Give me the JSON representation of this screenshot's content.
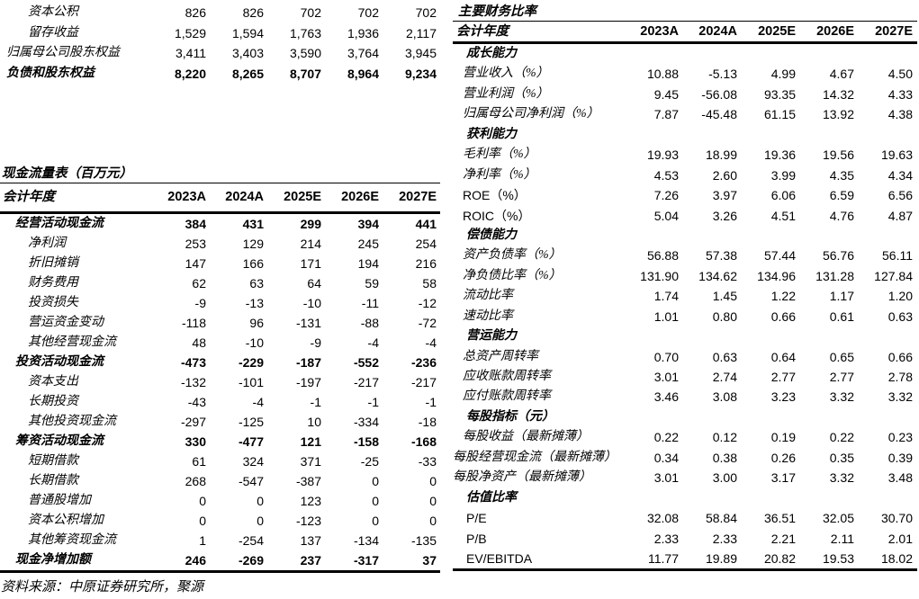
{
  "source_note": "资料来源：中原证券研究所，聚源",
  "balance_sheet_fragment": {
    "rows": [
      {
        "label": "资本公积",
        "indent": 2,
        "bold": false,
        "values": [
          "826",
          "826",
          "702",
          "702",
          "702"
        ]
      },
      {
        "label": "留存收益",
        "indent": 2,
        "bold": false,
        "values": [
          "1,529",
          "1,594",
          "1,763",
          "1,936",
          "2,117"
        ]
      },
      {
        "label": "归属母公司股东权益",
        "indent": 0,
        "bold": false,
        "values": [
          "3,411",
          "3,403",
          "3,590",
          "3,764",
          "3,945"
        ]
      },
      {
        "label": "负债和股东权益",
        "indent": 0,
        "bold": true,
        "values": [
          "8,220",
          "8,265",
          "8,707",
          "8,964",
          "9,234"
        ]
      }
    ]
  },
  "cash_flow_table": {
    "title": "现金流量表（百万元）",
    "header": {
      "label": "会计年度",
      "years": [
        "2023A",
        "2024A",
        "2025E",
        "2026E",
        "2027E"
      ]
    },
    "rows": [
      {
        "label": "经营活动现金流",
        "indent": 1,
        "bold": true,
        "values": [
          "384",
          "431",
          "299",
          "394",
          "441"
        ]
      },
      {
        "label": "净利润",
        "indent": 2,
        "bold": false,
        "values": [
          "253",
          "129",
          "214",
          "245",
          "254"
        ]
      },
      {
        "label": "折旧摊销",
        "indent": 2,
        "bold": false,
        "values": [
          "147",
          "166",
          "171",
          "194",
          "216"
        ]
      },
      {
        "label": "财务费用",
        "indent": 2,
        "bold": false,
        "values": [
          "62",
          "63",
          "64",
          "59",
          "58"
        ]
      },
      {
        "label": "投资损失",
        "indent": 2,
        "bold": false,
        "values": [
          "-9",
          "-13",
          "-10",
          "-11",
          "-12"
        ]
      },
      {
        "label": "营运资金变动",
        "indent": 2,
        "bold": false,
        "values": [
          "-118",
          "96",
          "-131",
          "-88",
          "-72"
        ]
      },
      {
        "label": "其他经营现金流",
        "indent": 2,
        "bold": false,
        "values": [
          "48",
          "-10",
          "-9",
          "-4",
          "-4"
        ]
      },
      {
        "label": "投资活动现金流",
        "indent": 1,
        "bold": true,
        "values": [
          "-473",
          "-229",
          "-187",
          "-552",
          "-236"
        ]
      },
      {
        "label": "资本支出",
        "indent": 2,
        "bold": false,
        "values": [
          "-132",
          "-101",
          "-197",
          "-217",
          "-217"
        ]
      },
      {
        "label": "长期投资",
        "indent": 2,
        "bold": false,
        "values": [
          "-43",
          "-4",
          "-1",
          "-1",
          "-1"
        ]
      },
      {
        "label": "其他投资现金流",
        "indent": 2,
        "bold": false,
        "values": [
          "-297",
          "-125",
          "10",
          "-334",
          "-18"
        ]
      },
      {
        "label": "筹资活动现金流",
        "indent": 1,
        "bold": true,
        "values": [
          "330",
          "-477",
          "121",
          "-158",
          "-168"
        ]
      },
      {
        "label": "短期借款",
        "indent": 2,
        "bold": false,
        "values": [
          "61",
          "324",
          "371",
          "-25",
          "-33"
        ]
      },
      {
        "label": "长期借款",
        "indent": 2,
        "bold": false,
        "values": [
          "268",
          "-547",
          "-387",
          "0",
          "0"
        ]
      },
      {
        "label": "普通股增加",
        "indent": 2,
        "bold": false,
        "values": [
          "0",
          "0",
          "123",
          "0",
          "0"
        ]
      },
      {
        "label": "资本公积增加",
        "indent": 2,
        "bold": false,
        "values": [
          "0",
          "0",
          "-123",
          "0",
          "0"
        ]
      },
      {
        "label": "其他筹资现金流",
        "indent": 2,
        "bold": false,
        "values": [
          "1",
          "-254",
          "137",
          "-134",
          "-135"
        ]
      },
      {
        "label": "现金净增加额",
        "indent": 1,
        "bold": true,
        "values": [
          "246",
          "-269",
          "237",
          "-317",
          "37"
        ]
      }
    ]
  },
  "ratio_table": {
    "title": "主要财务比率",
    "header": {
      "label": "会计年度",
      "years": [
        "2023A",
        "2024A",
        "2025E",
        "2026E",
        "2027E"
      ]
    },
    "rows": [
      {
        "label": "成长能力",
        "indent": 2,
        "bold": true,
        "values": [
          "",
          "",
          "",
          "",
          ""
        ]
      },
      {
        "label": "营业收入（%）",
        "indent": 1,
        "bold": false,
        "values": [
          "10.88",
          "-5.13",
          "4.99",
          "4.67",
          "4.50"
        ]
      },
      {
        "label": "营业利润（%）",
        "indent": 1,
        "bold": false,
        "values": [
          "9.45",
          "-56.08",
          "93.35",
          "14.32",
          "4.33"
        ]
      },
      {
        "label": "归属母公司净利润（%）",
        "indent": 1,
        "bold": false,
        "values": [
          "7.87",
          "-45.48",
          "61.15",
          "13.92",
          "4.38"
        ]
      },
      {
        "label": "获利能力",
        "indent": 2,
        "bold": true,
        "values": [
          "",
          "",
          "",
          "",
          ""
        ]
      },
      {
        "label": "毛利率（%）",
        "indent": 1,
        "bold": false,
        "values": [
          "19.93",
          "18.99",
          "19.36",
          "19.56",
          "19.63"
        ]
      },
      {
        "label": "净利率（%）",
        "indent": 1,
        "bold": false,
        "values": [
          "4.53",
          "2.60",
          "3.99",
          "4.35",
          "4.34"
        ]
      },
      {
        "label": "ROE（%）",
        "indent": 1,
        "bold": false,
        "values": [
          "7.26",
          "3.97",
          "6.06",
          "6.59",
          "6.56"
        ]
      },
      {
        "label": "ROIC（%）",
        "indent": 1,
        "bold": false,
        "values": [
          "5.04",
          "3.26",
          "4.51",
          "4.76",
          "4.87"
        ]
      },
      {
        "label": "偿债能力",
        "indent": 2,
        "bold": true,
        "values": [
          "",
          "",
          "",
          "",
          ""
        ]
      },
      {
        "label": "资产负债率（%）",
        "indent": 1,
        "bold": false,
        "values": [
          "56.88",
          "57.38",
          "57.44",
          "56.76",
          "56.11"
        ]
      },
      {
        "label": "净负债比率（%）",
        "indent": 1,
        "bold": false,
        "values": [
          "131.90",
          "134.62",
          "134.96",
          "131.28",
          "127.84"
        ]
      },
      {
        "label": "流动比率",
        "indent": 1,
        "bold": false,
        "values": [
          "1.74",
          "1.45",
          "1.22",
          "1.17",
          "1.20"
        ]
      },
      {
        "label": "速动比率",
        "indent": 1,
        "bold": false,
        "values": [
          "1.01",
          "0.80",
          "0.66",
          "0.61",
          "0.63"
        ]
      },
      {
        "label": "营运能力",
        "indent": 2,
        "bold": true,
        "values": [
          "",
          "",
          "",
          "",
          ""
        ]
      },
      {
        "label": "总资产周转率",
        "indent": 1,
        "bold": false,
        "values": [
          "0.70",
          "0.63",
          "0.64",
          "0.65",
          "0.66"
        ]
      },
      {
        "label": "应收账款周转率",
        "indent": 1,
        "bold": false,
        "values": [
          "3.01",
          "2.74",
          "2.77",
          "2.77",
          "2.78"
        ]
      },
      {
        "label": "应付账款周转率",
        "indent": 1,
        "bold": false,
        "values": [
          "3.46",
          "3.08",
          "3.23",
          "3.32",
          "3.32"
        ]
      },
      {
        "label": "每股指标（元）",
        "indent": 2,
        "bold": true,
        "values": [
          "",
          "",
          "",
          "",
          ""
        ]
      },
      {
        "label": "每股收益（最新摊薄）",
        "indent": 1,
        "bold": false,
        "values": [
          "0.22",
          "0.12",
          "0.19",
          "0.22",
          "0.23"
        ]
      },
      {
        "label": "每股经营现金流（最新摊薄）",
        "indent": 0,
        "bold": false,
        "values": [
          "0.34",
          "0.38",
          "0.26",
          "0.35",
          "0.39"
        ]
      },
      {
        "label": "每股净资产（最新摊薄）",
        "indent": 0,
        "bold": false,
        "values": [
          "3.01",
          "3.00",
          "3.17",
          "3.32",
          "3.48"
        ]
      },
      {
        "label": "估值比率",
        "indent": 2,
        "bold": true,
        "values": [
          "",
          "",
          "",
          "",
          ""
        ]
      },
      {
        "label": "P/E",
        "indent": 2,
        "bold": false,
        "values": [
          "32.08",
          "58.84",
          "36.51",
          "32.05",
          "30.70"
        ]
      },
      {
        "label": "P/B",
        "indent": 2,
        "bold": false,
        "values": [
          "2.33",
          "2.33",
          "2.21",
          "2.11",
          "2.01"
        ]
      },
      {
        "label": "EV/EBITDA",
        "indent": 2,
        "bold": false,
        "values": [
          "11.77",
          "19.89",
          "20.82",
          "19.53",
          "18.02"
        ]
      }
    ]
  }
}
